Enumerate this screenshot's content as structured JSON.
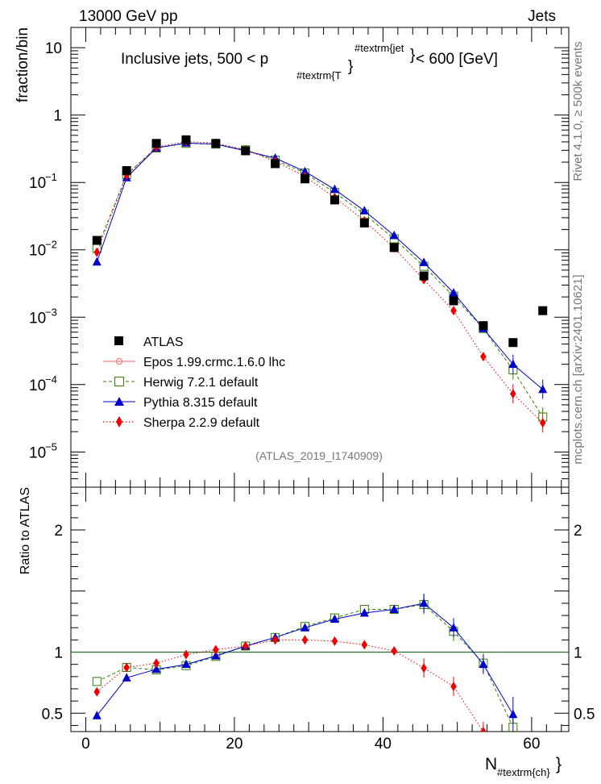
{
  "header": {
    "energy_label": "13000 GeV pp",
    "process_label": "Jets",
    "rivet_label": "Rivet 4.1.0, ≥ 500k events",
    "site_label": "mcplots.cern.ch [arXiv:2401.10621]",
    "analysis_label": "(ATLAS_2019_I1740909)"
  },
  "colors": {
    "atlas": "#000000",
    "epos": "#ff6666",
    "herwig": "#338000",
    "pythia": "#0000cc",
    "sherpa": "#ee0000",
    "unity_line": "#2a6a2a"
  },
  "chart_data": [
    {
      "type": "scatter",
      "panel": "main",
      "title": "Inclusive jets, 500 < p #textrm{T}^#textrm{jet} < 600 [GeV]",
      "title_parts": {
        "prefix": "Inclusive jets, 500 < p",
        "subscript": "#textrm{T",
        "superscript": "#textrm{jet",
        "brace_sub": "}",
        "brace_sup": "}",
        "suffix": " < 600 [GeV]"
      },
      "ylabel": "fraction/bin",
      "yscale": "log",
      "ylim": [
        3e-06,
        20
      ],
      "xlim": [
        -2,
        65
      ],
      "ytick_labels": [
        {
          "value": 10,
          "label": "10"
        },
        {
          "value": 1,
          "label": "1"
        },
        {
          "value": 0.1,
          "base": "10",
          "exp": "−1"
        },
        {
          "value": 0.01,
          "base": "10",
          "exp": "−2"
        },
        {
          "value": 0.001,
          "base": "10",
          "exp": "−3"
        },
        {
          "value": 0.0001,
          "base": "10",
          "exp": "−4"
        },
        {
          "value": 1e-05,
          "base": "10",
          "exp": "−5"
        }
      ],
      "legend_position": "bottom-left",
      "series": [
        {
          "name": "ATLAS",
          "key": "atlas",
          "marker": "square",
          "line": "none",
          "x": [
            1.5,
            5.5,
            9.5,
            13.5,
            17.5,
            21.5,
            25.5,
            29.5,
            33.5,
            37.5,
            41.5,
            45.5,
            49.5,
            53.5,
            57.5,
            61.5
          ],
          "y": [
            0.0138,
            0.15,
            0.38,
            0.43,
            0.38,
            0.295,
            0.19,
            0.113,
            0.055,
            0.025,
            0.0108,
            0.0041,
            0.00175,
            0.00075,
            0.00042,
            0.00125
          ]
        },
        {
          "name": "Epos 1.99.crmc.1.6.0 lhc",
          "key": "epos",
          "marker": "open-cross",
          "line": "solid",
          "x": [],
          "y": []
        },
        {
          "name": "Herwig 7.2.1 default",
          "key": "herwig",
          "marker": "open-square",
          "line": "dashed",
          "x": [
            1.5,
            5.5,
            9.5,
            13.5,
            17.5,
            21.5,
            25.5,
            29.5,
            33.5,
            37.5,
            41.5,
            45.5,
            49.5,
            53.5,
            57.5,
            61.5
          ],
          "y": [
            0.0105,
            0.131,
            0.325,
            0.38,
            0.37,
            0.305,
            0.215,
            0.138,
            0.071,
            0.034,
            0.0146,
            0.0057,
            0.00205,
            0.00068,
            0.000165,
            3.3e-05
          ]
        },
        {
          "name": "Pythia 8.315 default",
          "key": "pythia",
          "marker": "triangle",
          "line": "solid",
          "x": [
            1.5,
            5.5,
            9.5,
            13.5,
            17.5,
            21.5,
            25.5,
            29.5,
            33.5,
            37.5,
            41.5,
            45.5,
            49.5,
            53.5,
            57.5,
            61.5
          ],
          "y": [
            0.0066,
            0.118,
            0.325,
            0.385,
            0.37,
            0.295,
            0.23,
            0.145,
            0.079,
            0.038,
            0.0163,
            0.0065,
            0.0023,
            0.00068,
            0.0002,
            8.5e-05
          ]
        },
        {
          "name": "Sherpa 2.2.9 default",
          "key": "sherpa",
          "marker": "diamond",
          "line": "dotted",
          "x": [
            1.5,
            5.5,
            9.5,
            13.5,
            17.5,
            21.5,
            25.5,
            29.5,
            33.5,
            37.5,
            41.5,
            45.5,
            49.5,
            53.5,
            57.5,
            61.5
          ],
          "y": [
            0.0092,
            0.128,
            0.335,
            0.405,
            0.385,
            0.305,
            0.205,
            0.123,
            0.06,
            0.027,
            0.0107,
            0.0036,
            0.00125,
            0.00026,
            7.3e-05,
            2.7e-05
          ]
        }
      ]
    },
    {
      "type": "line",
      "panel": "ratio",
      "ylabel": "Ratio to ATLAS",
      "xlabel": "N",
      "xlabel_sub": "#textrm{ch}",
      "xlabel_brace": "}",
      "ylim": [
        0.35,
        2.35
      ],
      "xlim": [
        -2,
        65
      ],
      "xticks": [
        0,
        20,
        40,
        60
      ],
      "yticks": [
        0.5,
        1,
        2
      ],
      "ytick_labels": [
        "0.5",
        "1",
        "2"
      ],
      "reference": 1,
      "series": [
        {
          "name": "Herwig 7.2.1 default",
          "key": "herwig",
          "marker": "open-square",
          "line": "dashed",
          "x": [
            1.5,
            5.5,
            9.5,
            13.5,
            17.5,
            21.5,
            25.5,
            29.5,
            33.5,
            37.5,
            41.5,
            45.5,
            49.5,
            53.5,
            57.5
          ],
          "y": [
            0.76,
            0.875,
            0.855,
            0.89,
            0.965,
            1.05,
            1.12,
            1.21,
            1.28,
            1.35,
            1.35,
            1.39,
            1.17,
            0.91,
            0.385
          ]
        },
        {
          "name": "Pythia 8.315 default",
          "key": "pythia",
          "marker": "triangle",
          "line": "solid",
          "x": [
            1.5,
            5.5,
            9.5,
            13.5,
            17.5,
            21.5,
            25.5,
            29.5,
            33.5,
            37.5,
            41.5,
            45.5,
            49.5,
            53.5,
            57.5
          ],
          "y": [
            0.48,
            0.79,
            0.86,
            0.9,
            0.97,
            1.05,
            1.12,
            1.2,
            1.27,
            1.32,
            1.35,
            1.4,
            1.2,
            0.9,
            0.49
          ]
        },
        {
          "name": "Sherpa 2.2.9 default",
          "key": "sherpa",
          "marker": "diamond",
          "line": "dotted",
          "x": [
            1.5,
            5.5,
            9.5,
            13.5,
            17.5,
            21.5,
            25.5,
            29.5,
            33.5,
            37.5,
            41.5,
            45.5,
            49.5,
            53.5
          ],
          "y": [
            0.675,
            0.875,
            0.91,
            0.98,
            1.02,
            1.05,
            1.1,
            1.1,
            1.09,
            1.06,
            1.01,
            0.87,
            0.72,
            0.35
          ]
        }
      ]
    }
  ]
}
